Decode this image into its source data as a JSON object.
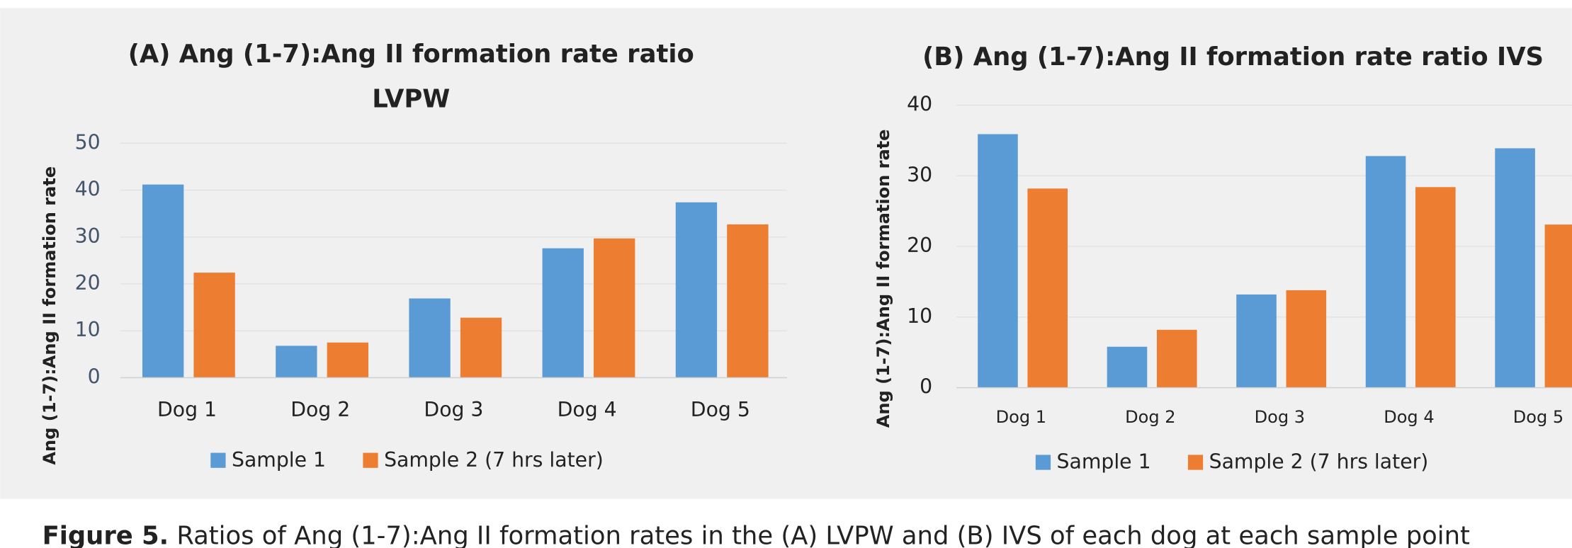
{
  "chart_data": [
    {
      "type": "bar",
      "title": [
        "(A) Ang (1-7):Ang II formation rate ratio",
        "LVPW"
      ],
      "y_label": "Ang (1-7):Ang II formation rate",
      "categories": [
        "Dog 1",
        "Dog 2",
        "Dog 3",
        "Dog 4",
        "Dog 5"
      ],
      "series": [
        {
          "name": "Sample 1",
          "color": "#5b9bd5",
          "values": [
            41.2,
            6.8,
            16.9,
            27.6,
            37.4
          ]
        },
        {
          "name": "Sample 2 (7 hrs later)",
          "color": "#ed7d31",
          "values": [
            22.4,
            7.5,
            12.8,
            29.7,
            32.7
          ]
        }
      ],
      "ylim": [
        0,
        50
      ],
      "yticks": [
        0,
        10,
        20,
        30,
        40,
        50
      ],
      "grid": true,
      "legend": "bottom"
    },
    {
      "type": "bar",
      "title": [
        "(B) Ang (1-7):Ang II formation rate ratio IVS"
      ],
      "y_label": "Ang (1-7):Ang II formation rate",
      "categories": [
        "Dog 1",
        "Dog 2",
        "Dog 3",
        "Dog 4",
        "Dog 5"
      ],
      "series": [
        {
          "name": "Sample 1",
          "color": "#5b9bd5",
          "values": [
            35.9,
            5.8,
            13.2,
            32.8,
            33.9
          ]
        },
        {
          "name": "Sample 2 (7 hrs later)",
          "color": "#ed7d31",
          "values": [
            28.2,
            8.2,
            13.8,
            28.4,
            23.1
          ]
        }
      ],
      "ylim": [
        0,
        40
      ],
      "yticks": [
        0,
        10,
        20,
        30,
        40
      ],
      "grid": true,
      "legend": "bottom"
    }
  ],
  "caption": {
    "label": "Figure 5.",
    "text": " Ratios of Ang (1-7):Ang II formation rates in the (A) LVPW and (B) IVS of each dog at each sample point"
  }
}
